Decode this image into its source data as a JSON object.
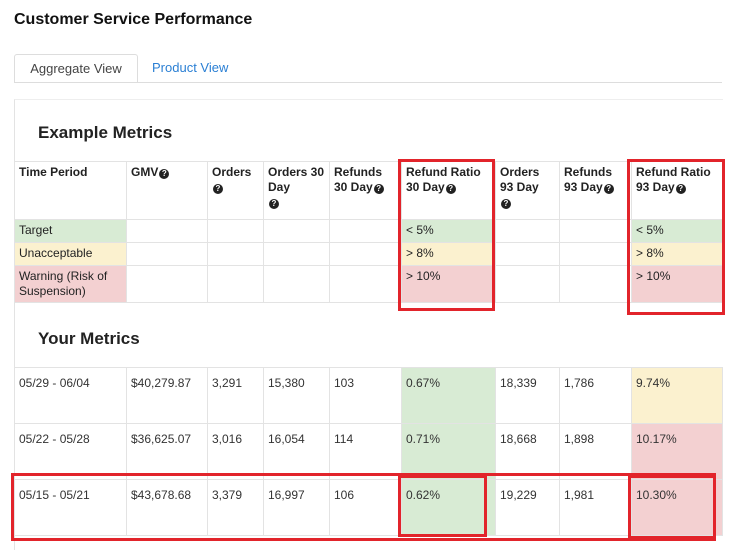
{
  "title": "Customer Service Performance",
  "tabs": [
    {
      "label": "Aggregate View",
      "active": true
    },
    {
      "label": "Product View",
      "active": false
    }
  ],
  "colors": {
    "accent_link": "#2a7fd4",
    "target_green": "#d8ebd4",
    "unacceptable_yellow": "#fbf1cf",
    "warning_red": "#f3d0d1",
    "highlight_red": "#e2242b"
  },
  "example_metrics": {
    "title": "Example Metrics",
    "headers": [
      "Time Period",
      "GMV",
      "Orders",
      "Orders 30 Day",
      "Refunds 30 Day",
      "Refund Ratio 30 Day",
      "Orders 93 Day",
      "Refunds 93 Day",
      "Refund Ratio 93 Day"
    ],
    "rows": [
      {
        "label": "Target",
        "ratio30": "< 5%",
        "ratio93": "< 5%"
      },
      {
        "label": "Unacceptable",
        "ratio30": "> 8%",
        "ratio93": "> 8%"
      },
      {
        "label": "Warning (Risk of Suspension)",
        "ratio30": "> 10%",
        "ratio93": "> 10%"
      }
    ]
  },
  "your_metrics": {
    "title": "Your Metrics",
    "rows": [
      {
        "period": "05/29 - 06/04",
        "gmv": "$40,279.87",
        "orders": "3,291",
        "orders30": "15,380",
        "refunds30": "103",
        "ratio30": "0.67%",
        "orders93": "18,339",
        "refunds93": "1,786",
        "ratio93": "9.74%"
      },
      {
        "period": "05/22 - 05/28",
        "gmv": "$36,625.07",
        "orders": "3,016",
        "orders30": "16,054",
        "refunds30": "114",
        "ratio30": "0.71%",
        "orders93": "18,668",
        "refunds93": "1,898",
        "ratio93": "10.17%"
      },
      {
        "period": "05/15 - 05/21",
        "gmv": "$43,678.68",
        "orders": "3,379",
        "orders30": "16,997",
        "refunds30": "106",
        "ratio30": "0.62%",
        "orders93": "19,229",
        "refunds93": "1,981",
        "ratio93": "10.30%"
      }
    ]
  }
}
